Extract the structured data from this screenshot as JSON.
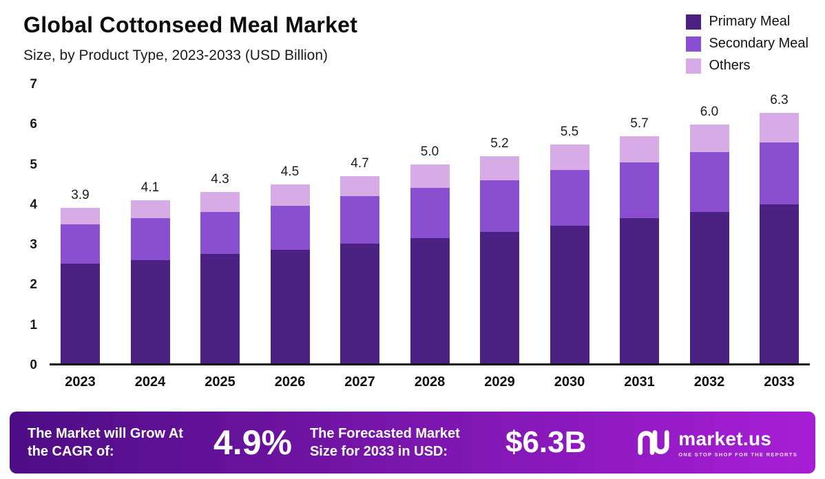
{
  "header": {
    "title": "Global Cottonseed Meal Market",
    "subtitle": "Size, by Product Type, 2023-2033 (USD Billion)"
  },
  "chart_data": {
    "type": "bar",
    "stacked": true,
    "title": "Global Cottonseed Meal Market",
    "subtitle": "Size, by Product Type, 2023-2033 (USD Billion)",
    "unit": "USD Billion",
    "categories": [
      "2023",
      "2024",
      "2025",
      "2026",
      "2027",
      "2028",
      "2029",
      "2030",
      "2031",
      "2032",
      "2033"
    ],
    "series": [
      {
        "name": "Primary Meal",
        "color": "#4b2183",
        "values": [
          2.5,
          2.6,
          2.75,
          2.85,
          3.0,
          3.15,
          3.3,
          3.45,
          3.65,
          3.8,
          4.0
        ]
      },
      {
        "name": "Secondary Meal",
        "color": "#8a4fd1",
        "values": [
          1.0,
          1.05,
          1.05,
          1.1,
          1.2,
          1.25,
          1.3,
          1.4,
          1.4,
          1.5,
          1.55
        ]
      },
      {
        "name": "Others",
        "color": "#d7ace6",
        "values": [
          0.4,
          0.45,
          0.5,
          0.55,
          0.5,
          0.6,
          0.6,
          0.65,
          0.65,
          0.7,
          0.75
        ]
      }
    ],
    "totals": [
      3.9,
      4.1,
      4.3,
      4.5,
      4.7,
      5.0,
      5.2,
      5.5,
      5.7,
      6.0,
      6.3
    ],
    "total_labels": [
      "3.9",
      "4.1",
      "4.3",
      "4.5",
      "4.7",
      "5.0",
      "5.2",
      "5.5",
      "5.7",
      "6.0",
      "6.3"
    ],
    "ylim": [
      0,
      7
    ],
    "yticks": [
      0,
      1,
      2,
      3,
      4,
      5,
      6,
      7
    ],
    "legend_position": "top-right",
    "grid": false
  },
  "footer": {
    "cagr_label": "The Market will Grow At the CAGR of:",
    "cagr_value": "4.9%",
    "forecast_label": "The Forecasted Market Size for 2033 in USD:",
    "forecast_value": "$6.3B",
    "brand_name": "market.us",
    "brand_tagline": "ONE STOP SHOP FOR THE REPORTS",
    "gradient": [
      "#4d0d85",
      "#a81ed6"
    ]
  }
}
